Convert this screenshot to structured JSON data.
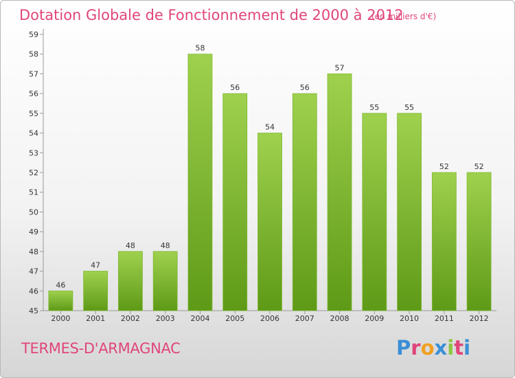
{
  "header": {
    "title": "Dotation Globale de Fonctionnement de 2000 à 2012",
    "subtitle": "(en milliers d'€)"
  },
  "footer": {
    "commune": "TERMES-D'ARMAGNAC",
    "logo_letters": [
      "P",
      "r",
      "o",
      "x",
      "i",
      "t",
      "i"
    ],
    "logo_colors": [
      "#3a8fd6",
      "#e0457b",
      "#f0a020",
      "#3a8fd6",
      "#8cc63f",
      "#e0457b",
      "#3a8fd6"
    ]
  },
  "chart_data": {
    "type": "bar",
    "title": "Dotation Globale de Fonctionnement de 2000 à 2012",
    "subtitle": "(en milliers d'€)",
    "categories": [
      "2000",
      "2001",
      "2002",
      "2003",
      "2004",
      "2005",
      "2006",
      "2007",
      "2008",
      "2009",
      "2010",
      "2011",
      "2012"
    ],
    "values": [
      46,
      47,
      48,
      48,
      58,
      56,
      54,
      56,
      57,
      55,
      55,
      52,
      52
    ],
    "data_labels": [
      "46",
      "47",
      "48",
      "48",
      "58",
      "56",
      "54",
      "56",
      "57",
      "55",
      "55",
      "52",
      "52"
    ],
    "y_ticks": [
      "45",
      "46",
      "47",
      "48",
      "49",
      "50",
      "51",
      "52",
      "53",
      "54",
      "55",
      "56",
      "57",
      "58",
      "59"
    ],
    "ylim": [
      45,
      59
    ],
    "grid": false,
    "bar_color_top": "#9fd14e",
    "bar_color_bottom": "#5e9a17"
  }
}
